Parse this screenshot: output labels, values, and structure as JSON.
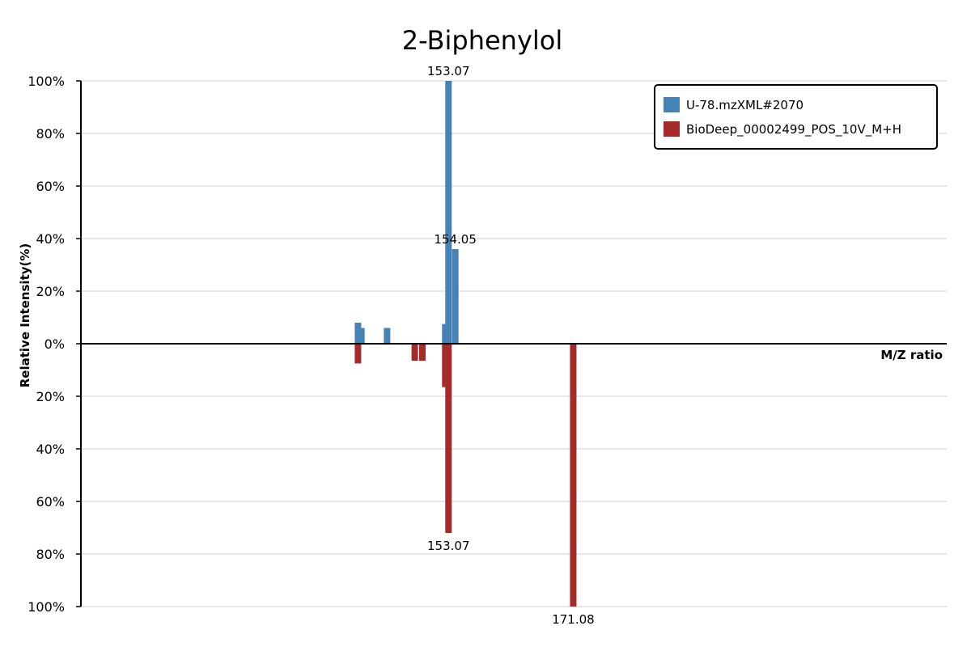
{
  "chart_data": {
    "type": "bar",
    "title": "2-Biphenylol",
    "ylabel": "Relative Intensity(%)",
    "xlabel": "M/Z ratio",
    "mz_range": [
      100,
      225
    ],
    "ylim": [
      -100,
      100
    ],
    "y_ticks": [
      {
        "value": 100,
        "label": "100%"
      },
      {
        "value": 80,
        "label": "80%"
      },
      {
        "value": 60,
        "label": "60%"
      },
      {
        "value": 40,
        "label": "40%"
      },
      {
        "value": 20,
        "label": "20%"
      },
      {
        "value": 0,
        "label": "0%"
      },
      {
        "value": -20,
        "label": "20%"
      },
      {
        "value": -40,
        "label": "40%"
      },
      {
        "value": -60,
        "label": "60%"
      },
      {
        "value": -80,
        "label": "80%"
      },
      {
        "value": -100,
        "label": "100%"
      }
    ],
    "grid": true,
    "legend_position": "top-right",
    "series": [
      {
        "name": "U-78.mzXML#2070",
        "color": "#4682b4",
        "direction": "up",
        "peaks": [
          {
            "mz": 140.0,
            "intensity": 8
          },
          {
            "mz": 140.5,
            "intensity": 6
          },
          {
            "mz": 144.2,
            "intensity": 6
          },
          {
            "mz": 152.6,
            "intensity": 7.5
          },
          {
            "mz": 153.07,
            "intensity": 100,
            "label": "153.07"
          },
          {
            "mz": 154.05,
            "intensity": 36,
            "label": "154.05"
          }
        ]
      },
      {
        "name": "BioDeep_00002499_POS_10V_M+H",
        "color": "#a52a2a",
        "direction": "down",
        "peaks": [
          {
            "mz": 140.0,
            "intensity": 7.5
          },
          {
            "mz": 148.2,
            "intensity": 6.5
          },
          {
            "mz": 149.3,
            "intensity": 6.5
          },
          {
            "mz": 152.6,
            "intensity": 16.5
          },
          {
            "mz": 153.07,
            "intensity": 72,
            "label": "153.07"
          },
          {
            "mz": 171.08,
            "intensity": 100,
            "label": "171.08"
          }
        ]
      }
    ]
  }
}
